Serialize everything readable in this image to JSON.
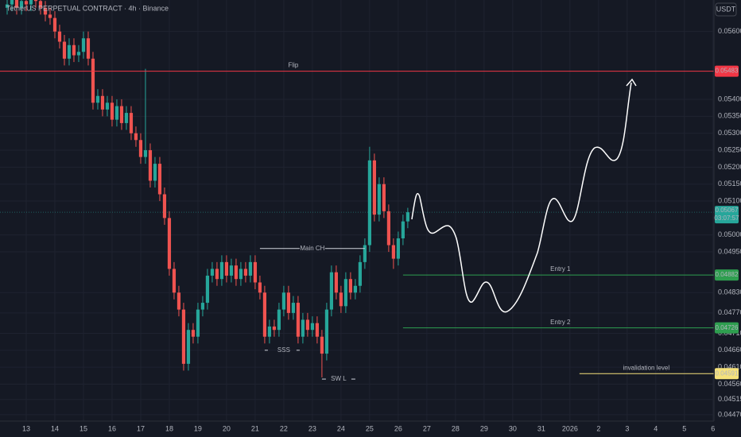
{
  "chart_data": {
    "type": "candlestick",
    "title": "TetherUS PERPETUAL CONTRACT · 4h · Binance",
    "currency_button": "USDT",
    "up_color": "#26a69a",
    "down_color": "#ef5350",
    "grid": true,
    "xlim": [
      -5.5,
      144.2
    ],
    "ylim": [
      0.04451,
      0.05693
    ],
    "xticks": [
      {
        "value": 0,
        "label": "13"
      },
      {
        "value": 6,
        "label": "14"
      },
      {
        "value": 12,
        "label": "15"
      },
      {
        "value": 18,
        "label": "16"
      },
      {
        "value": 24,
        "label": "17"
      },
      {
        "value": 30,
        "label": "18"
      },
      {
        "value": 36,
        "label": "19"
      },
      {
        "value": 42,
        "label": "20"
      },
      {
        "value": 48,
        "label": "21"
      },
      {
        "value": 54,
        "label": "22"
      },
      {
        "value": 60,
        "label": "23"
      },
      {
        "value": 66,
        "label": "24"
      },
      {
        "value": 72,
        "label": "25"
      },
      {
        "value": 78,
        "label": "26"
      },
      {
        "value": 84,
        "label": "27"
      },
      {
        "value": 90,
        "label": "28"
      },
      {
        "value": 96,
        "label": "29"
      },
      {
        "value": 102,
        "label": "30"
      },
      {
        "value": 108,
        "label": "31"
      },
      {
        "value": 114,
        "label": "2026"
      },
      {
        "value": 120,
        "label": "2"
      },
      {
        "value": 126,
        "label": "3"
      },
      {
        "value": 132,
        "label": "4"
      },
      {
        "value": 138,
        "label": "5"
      },
      {
        "value": 144,
        "label": "6"
      }
    ],
    "yticks": [
      {
        "value": 0.056,
        "label": "0.05600"
      },
      {
        "value": 0.054,
        "label": "0.05400"
      },
      {
        "value": 0.0535,
        "label": "0.05350"
      },
      {
        "value": 0.053,
        "label": "0.05300"
      },
      {
        "value": 0.0525,
        "label": "0.05250"
      },
      {
        "value": 0.052,
        "label": "0.05200"
      },
      {
        "value": 0.0515,
        "label": "0.05150"
      },
      {
        "value": 0.051,
        "label": "0.05100"
      },
      {
        "value": 0.05,
        "label": "0.05000"
      },
      {
        "value": 0.0495,
        "label": "0.04950"
      },
      {
        "value": 0.0483,
        "label": "0.04830"
      },
      {
        "value": 0.0477,
        "label": "0.04770"
      },
      {
        "value": 0.0471,
        "label": "0.04710"
      },
      {
        "value": 0.0466,
        "label": "0.04660"
      },
      {
        "value": 0.0461,
        "label": "0.04610"
      },
      {
        "value": 0.0456,
        "label": "0.04560"
      },
      {
        "value": 0.04515,
        "label": "0.04515"
      },
      {
        "value": 0.0447,
        "label": "0.04470"
      }
    ],
    "x": [
      -4,
      -3,
      -2,
      -1,
      0,
      1,
      2,
      3,
      4,
      5,
      6,
      7,
      8,
      9,
      10,
      11,
      12,
      13,
      14,
      15,
      16,
      17,
      18,
      19,
      20,
      21,
      22,
      23,
      24,
      25,
      26,
      27,
      28,
      29,
      30,
      31,
      32,
      33,
      34,
      35,
      36,
      37,
      38,
      39,
      40,
      41,
      42,
      43,
      44,
      45,
      46,
      47,
      48,
      49,
      50,
      51,
      52,
      53,
      54,
      55,
      56,
      57,
      58,
      59,
      60,
      61,
      62,
      63,
      64,
      65,
      66,
      67,
      68,
      69,
      70,
      71,
      72,
      73,
      74,
      75,
      76,
      77,
      78,
      79,
      80
    ],
    "open": [
      0.0567,
      0.0568,
      0.057,
      0.0567,
      0.0569,
      0.0568,
      0.057,
      0.0569,
      0.0567,
      0.0565,
      0.0564,
      0.056,
      0.0557,
      0.0552,
      0.0556,
      0.0553,
      0.0554,
      0.0558,
      0.0552,
      0.0539,
      0.0541,
      0.0537,
      0.0539,
      0.0534,
      0.0538,
      0.0533,
      0.0536,
      0.053,
      0.0528,
      0.0523,
      0.0525,
      0.0516,
      0.0521,
      0.0512,
      0.0505,
      0.049,
      0.0483,
      0.0478,
      0.0462,
      0.0472,
      0.047,
      0.0478,
      0.048,
      0.0488,
      0.049,
      0.0487,
      0.0492,
      0.0488,
      0.0491,
      0.0487,
      0.049,
      0.0488,
      0.0492,
      0.0486,
      0.0483,
      0.047,
      0.0473,
      0.0472,
      0.0478,
      0.0483,
      0.0477,
      0.048,
      0.047,
      0.0475,
      0.0472,
      0.0474,
      0.047,
      0.0465,
      0.0478,
      0.0489,
      0.0483,
      0.0479,
      0.0487,
      0.0483,
      0.0485,
      0.0492,
      0.0497,
      0.0522,
      0.0506,
      0.0515,
      0.0507,
      0.0497,
      0.0493,
      0.0499,
      0.0504
    ],
    "high": [
      0.057,
      0.0572,
      0.0572,
      0.0571,
      0.0571,
      0.0572,
      0.0572,
      0.0571,
      0.0569,
      0.0567,
      0.0566,
      0.0562,
      0.0559,
      0.0558,
      0.0558,
      0.0556,
      0.056,
      0.056,
      0.0554,
      0.0543,
      0.0543,
      0.0541,
      0.0541,
      0.054,
      0.054,
      0.0538,
      0.0538,
      0.0532,
      0.053,
      0.0549,
      0.0527,
      0.0523,
      0.0523,
      0.0514,
      0.0507,
      0.0492,
      0.0485,
      0.048,
      0.0474,
      0.0474,
      0.048,
      0.0482,
      0.049,
      0.0492,
      0.0492,
      0.0494,
      0.0494,
      0.0493,
      0.0493,
      0.0492,
      0.0492,
      0.0494,
      0.0494,
      0.0488,
      0.0485,
      0.0475,
      0.0475,
      0.048,
      0.0485,
      0.0485,
      0.0482,
      0.0482,
      0.0477,
      0.0477,
      0.0476,
      0.0476,
      0.0472,
      0.048,
      0.0491,
      0.0491,
      0.0485,
      0.0489,
      0.0489,
      0.0487,
      0.0494,
      0.0499,
      0.0526,
      0.0524,
      0.0517,
      0.0517,
      0.0509,
      0.0499,
      0.0501,
      0.0506,
      0.0508
    ],
    "low": [
      0.0565,
      0.0566,
      0.0565,
      0.0565,
      0.0566,
      0.0566,
      0.0567,
      0.0565,
      0.0563,
      0.0562,
      0.0558,
      0.0555,
      0.055,
      0.055,
      0.0551,
      0.0551,
      0.0552,
      0.055,
      0.0537,
      0.0537,
      0.0535,
      0.0535,
      0.0532,
      0.0532,
      0.0531,
      0.0531,
      0.0528,
      0.0526,
      0.0521,
      0.0521,
      0.0514,
      0.0514,
      0.051,
      0.0503,
      0.0488,
      0.0481,
      0.0476,
      0.046,
      0.046,
      0.0468,
      0.0468,
      0.0476,
      0.0478,
      0.0486,
      0.0485,
      0.0485,
      0.0486,
      0.0486,
      0.0485,
      0.0485,
      0.0486,
      0.0486,
      0.0484,
      0.0481,
      0.0468,
      0.0468,
      0.047,
      0.047,
      0.0476,
      0.0475,
      0.0475,
      0.0468,
      0.0468,
      0.047,
      0.047,
      0.0468,
      0.0458,
      0.0463,
      0.0476,
      0.0481,
      0.0477,
      0.0477,
      0.0481,
      0.0481,
      0.0483,
      0.049,
      0.0495,
      0.0504,
      0.0504,
      0.0505,
      0.0495,
      0.049,
      0.0491,
      0.0497,
      0.0502
    ],
    "close": [
      0.0568,
      0.057,
      0.0567,
      0.0569,
      0.0568,
      0.057,
      0.0569,
      0.0567,
      0.0565,
      0.0564,
      0.056,
      0.0557,
      0.0552,
      0.0556,
      0.0553,
      0.0554,
      0.0558,
      0.0552,
      0.0539,
      0.0541,
      0.0537,
      0.0539,
      0.0534,
      0.0538,
      0.0533,
      0.0536,
      0.053,
      0.0528,
      0.0523,
      0.0525,
      0.0516,
      0.0521,
      0.0512,
      0.0505,
      0.049,
      0.0483,
      0.0478,
      0.0462,
      0.0472,
      0.047,
      0.0478,
      0.048,
      0.0488,
      0.049,
      0.0487,
      0.0492,
      0.0488,
      0.0491,
      0.0487,
      0.049,
      0.0488,
      0.0492,
      0.0486,
      0.0483,
      0.047,
      0.0473,
      0.0472,
      0.0478,
      0.0483,
      0.0477,
      0.048,
      0.047,
      0.0475,
      0.0472,
      0.0474,
      0.047,
      0.0465,
      0.0478,
      0.0489,
      0.0483,
      0.0479,
      0.0487,
      0.0483,
      0.0485,
      0.0492,
      0.0497,
      0.0522,
      0.0506,
      0.0515,
      0.0507,
      0.0497,
      0.0493,
      0.0499,
      0.0504,
      0.05067
    ],
    "last_price": {
      "value": 0.05067,
      "label": "0.05067",
      "countdown": "03:07:57",
      "color": "#26a69a"
    },
    "levels": [
      {
        "label": "Flip",
        "value": 0.05483,
        "value_label": "0.05483",
        "color": "#f23645",
        "x_start": -5.5,
        "label_x": 56
      },
      {
        "label": "Entry 1",
        "value": 0.04882,
        "value_label": "0.04882",
        "color": "#2e9e4f",
        "x_start": 79,
        "label_x": 112
      },
      {
        "label": "Entry 2",
        "value": 0.04726,
        "value_label": "0.04726",
        "color": "#2e9e4f",
        "x_start": 79,
        "label_x": 112
      },
      {
        "label": "invalidation level",
        "value": 0.04591,
        "value_label": "0.04591",
        "color": "#f5e17a",
        "x_start": 116,
        "label_x": 130
      }
    ],
    "annotations": [
      {
        "text": "Main CH",
        "value": 0.0496,
        "x_range": [
          49,
          71
        ],
        "style": "solid"
      },
      {
        "text": "SSS",
        "value": 0.0466,
        "x_range": [
          50,
          58
        ],
        "style": "dashed"
      },
      {
        "text": "SW L",
        "value": 0.04575,
        "x_range": [
          62,
          69
        ],
        "style": "solid"
      }
    ]
  }
}
